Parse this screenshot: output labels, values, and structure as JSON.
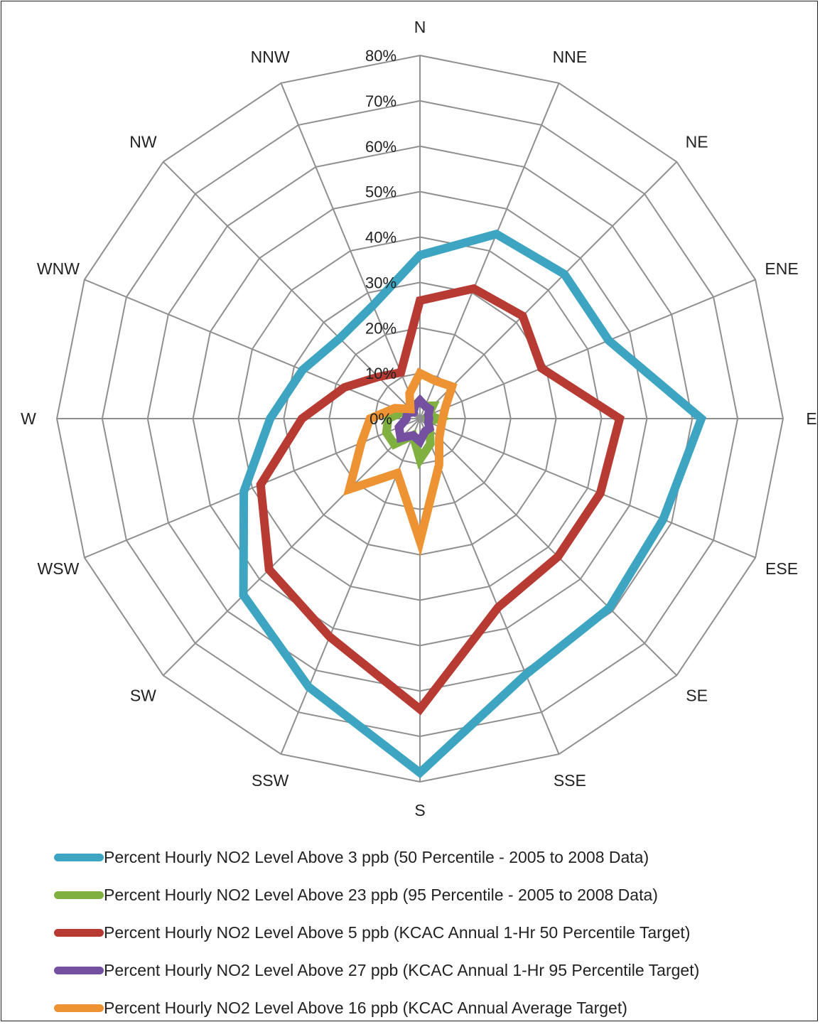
{
  "chart_data": {
    "type": "radar",
    "title": "",
    "categories": [
      "N",
      "NNE",
      "NE",
      "ENE",
      "E",
      "ESE",
      "SE",
      "SSE",
      "S",
      "SSW",
      "SW",
      "WSW",
      "W",
      "WNW",
      "NW",
      "NNW"
    ],
    "r_ticks": [
      "0%",
      "10%",
      "20%",
      "30%",
      "40%",
      "50%",
      "60%",
      "70%",
      "80%"
    ],
    "r_range": [
      0,
      80
    ],
    "grid": true,
    "legend_position": "bottom",
    "series": [
      {
        "name": "Percent Hourly NO2 Level Above 3 ppb (50 Percentile - 2005 to 2008 Data)",
        "color": "#3DA5C1",
        "values": [
          36,
          44,
          45,
          45,
          62,
          58,
          59,
          61,
          78,
          64,
          55,
          42,
          33,
          28,
          25,
          27
        ]
      },
      {
        "name": "Percent Hourly NO2 Level Above 23 ppb (95 Percentile - 2005 to 2008 Data)",
        "color": "#7FB040",
        "values": [
          4,
          3,
          4,
          2,
          4,
          2,
          3,
          6,
          9,
          4,
          8,
          8,
          7,
          4,
          3,
          3
        ]
      },
      {
        "name": "Percent Hourly NO2 Level Above 5 ppb (KCAC Annual 1-Hr 50 Percentile Target)",
        "color": "#B73A33",
        "values": [
          26,
          31,
          32,
          29,
          44,
          43,
          43,
          45,
          64,
          52,
          47,
          38,
          26,
          18,
          13,
          11
        ]
      },
      {
        "name": "Percent Hourly NO2 Level Above 27 ppb (KCAC Annual 1-Hr 95 Percentile Target)",
        "color": "#7650A0",
        "values": [
          4,
          3,
          3,
          2,
          2,
          2,
          3,
          3,
          5,
          4,
          6,
          5,
          3,
          3,
          2,
          3
        ]
      },
      {
        "name": "Percent Hourly NO2 Level Above 16 ppb (KCAC Annual Average Target)",
        "color": "#EE9333",
        "values": [
          10,
          9,
          10,
          6,
          5,
          5,
          6,
          11,
          27,
          13,
          22,
          14,
          11,
          6,
          3,
          6
        ]
      }
    ]
  }
}
